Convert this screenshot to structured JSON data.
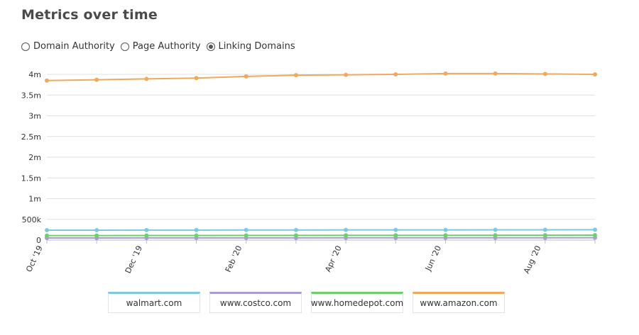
{
  "header": {
    "title": "Metrics over time"
  },
  "metric_options": [
    {
      "label": "Domain Authority",
      "selected": false
    },
    {
      "label": "Page Authority",
      "selected": false
    },
    {
      "label": "Linking Domains",
      "selected": true
    }
  ],
  "chart_data": {
    "type": "line",
    "x": [
      "Oct '19",
      "Nov '19",
      "Dec '19",
      "Jan '20",
      "Feb '20",
      "Mar '20",
      "Apr '20",
      "May '20",
      "Jun '20",
      "Jul '20",
      "Aug '20",
      "Sep '20"
    ],
    "x_tick_labels": [
      "Oct '19",
      "Dec '19",
      "Feb '20",
      "Apr '20",
      "Jun '20",
      "Aug '20"
    ],
    "y_tick_values": [
      0,
      500000,
      1000000,
      1500000,
      2000000,
      2500000,
      3000000,
      3500000,
      4000000
    ],
    "y_tick_labels": [
      "0",
      "500k",
      "1m",
      "1.5m",
      "2m",
      "2.5m",
      "3m",
      "3.5m",
      "4m"
    ],
    "ylim": [
      0,
      4000000
    ],
    "grid": true,
    "legend_position": "bottom",
    "series": [
      {
        "name": "walmart.com",
        "color": "#7ec9e0",
        "values": [
          240000,
          240000,
          242000,
          242000,
          244000,
          244000,
          245000,
          246000,
          246000,
          247000,
          248000,
          250000
        ]
      },
      {
        "name": "www.costco.com",
        "color": "#a99bd8",
        "values": [
          52000,
          52000,
          53000,
          53000,
          54000,
          54000,
          55000,
          55000,
          55000,
          56000,
          56000,
          57000
        ]
      },
      {
        "name": "www.homedepot.com",
        "color": "#6fcf6a",
        "values": [
          110000,
          110000,
          112000,
          112000,
          114000,
          114000,
          115000,
          116000,
          116000,
          117000,
          118000,
          120000
        ]
      },
      {
        "name": "www.amazon.com",
        "color": "#f0a95b",
        "values": [
          3850000,
          3870000,
          3890000,
          3910000,
          3950000,
          3980000,
          3990000,
          4000000,
          4020000,
          4020000,
          4010000,
          4000000
        ]
      }
    ]
  }
}
